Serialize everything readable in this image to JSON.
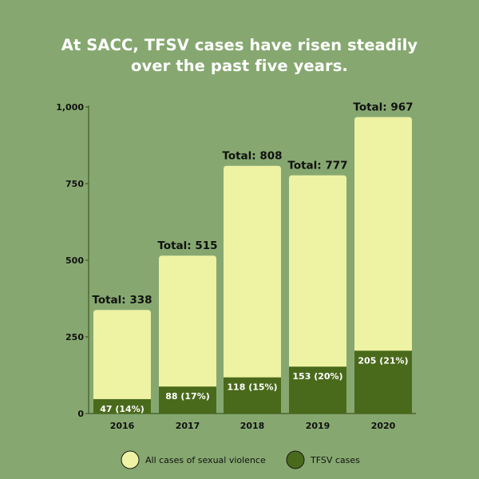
{
  "chart_data": {
    "type": "bar",
    "title": [
      "At SACC, TFSV cases have risen steadily",
      "over the past five years."
    ],
    "xlabel": "",
    "ylabel": "",
    "categories": [
      "2016",
      "2017",
      "2018",
      "2019",
      "2020"
    ],
    "series": [
      {
        "name": "All cases of sexual violence",
        "values": [
          338,
          515,
          808,
          777,
          967
        ],
        "labels": [
          "Total: 338",
          "Total: 515",
          "Total: 808",
          "Total: 777",
          "Total: 967"
        ]
      },
      {
        "name": "TFSV cases",
        "values": [
          47,
          88,
          118,
          153,
          205
        ],
        "labels": [
          "47 (14%)",
          "88 (17%)",
          "118 (15%)",
          "153 (20%)",
          "205 (21%)"
        ]
      }
    ],
    "ylim": [
      0,
      1000
    ],
    "yticks": [
      0,
      250,
      500,
      750,
      1000
    ],
    "ytick_labels": [
      "0",
      "250",
      "500",
      "750",
      "1,000"
    ],
    "grid": false,
    "legend_position": "bottom",
    "colors": {
      "background": "#86a870",
      "total": "#eef2a3",
      "tfsv": "#4a6a1b",
      "axis": "#3f5a22",
      "text": "#111111",
      "title": "#ffffff"
    }
  }
}
